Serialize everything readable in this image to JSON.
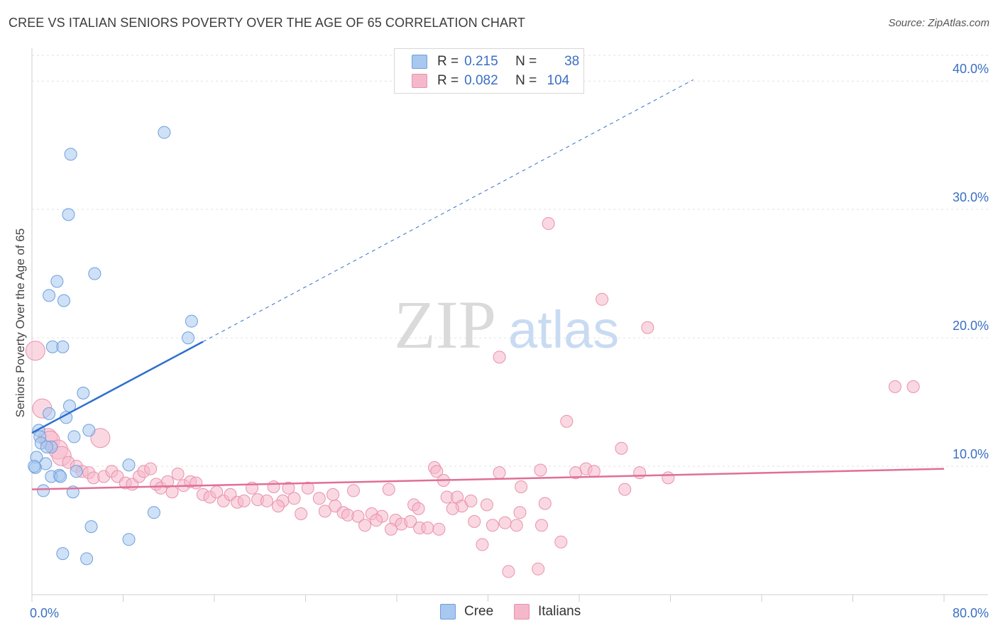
{
  "header": {
    "title": "CREE VS ITALIAN SENIORS POVERTY OVER THE AGE OF 65 CORRELATION CHART",
    "source": "Source: ZipAtlas.com"
  },
  "legend": {
    "rows": [
      {
        "r_label": "R =",
        "r_value": "0.215",
        "n_label": "N =",
        "n_value": "38"
      },
      {
        "r_label": "R =",
        "r_value": "0.082",
        "n_label": "N =",
        "n_value": "104"
      }
    ]
  },
  "colors": {
    "cree_fill": "#a8c8f0",
    "cree_stroke": "#6d9fdc",
    "cree_line": "#2f6fcc",
    "italians_fill": "#f5b8cb",
    "italians_stroke": "#e891ae",
    "italians_line": "#e06f97",
    "axis_text": "#3a6fc4",
    "grid": "#e2e2e2"
  },
  "chart_data": {
    "type": "scatter",
    "title": "CREE VS ITALIAN SENIORS POVERTY OVER THE AGE OF 65 CORRELATION CHART",
    "xlabel": "",
    "ylabel": "Seniors Poverty Over the Age of 65",
    "xlim": [
      0,
      80
    ],
    "ylim": [
      0,
      42
    ],
    "x_tick_labels": [
      "0.0%",
      "80.0%"
    ],
    "y_ticks": [
      10,
      20,
      30,
      40
    ],
    "y_tick_labels": [
      "10.0%",
      "20.0%",
      "30.0%",
      "40.0%"
    ],
    "watermark": {
      "zip": "ZIP",
      "atlas": "atlas"
    },
    "series": [
      {
        "name": "Cree",
        "points": [
          [
            11.6,
            36.0
          ],
          [
            3.4,
            34.3
          ],
          [
            3.2,
            29.6
          ],
          [
            5.5,
            25.0
          ],
          [
            2.2,
            24.4
          ],
          [
            1.5,
            23.3
          ],
          [
            2.8,
            22.9
          ],
          [
            14.0,
            21.3
          ],
          [
            13.7,
            20.0
          ],
          [
            1.8,
            19.3
          ],
          [
            2.7,
            19.3
          ],
          [
            4.5,
            15.7
          ],
          [
            3.3,
            14.7
          ],
          [
            1.5,
            14.1
          ],
          [
            3.0,
            13.8
          ],
          [
            5.0,
            12.8
          ],
          [
            0.6,
            12.8
          ],
          [
            0.7,
            12.3
          ],
          [
            3.7,
            12.3
          ],
          [
            0.8,
            11.8
          ],
          [
            1.7,
            11.5
          ],
          [
            1.3,
            11.5
          ],
          [
            0.4,
            10.7
          ],
          [
            1.2,
            10.2
          ],
          [
            8.5,
            10.1
          ],
          [
            0.3,
            9.9
          ],
          [
            3.9,
            9.6
          ],
          [
            2.4,
            9.3
          ],
          [
            1.7,
            9.2
          ],
          [
            2.5,
            9.2
          ],
          [
            1.0,
            8.1
          ],
          [
            3.6,
            8.0
          ],
          [
            10.7,
            6.4
          ],
          [
            5.2,
            5.3
          ],
          [
            8.5,
            4.3
          ],
          [
            2.7,
            3.2
          ],
          [
            4.8,
            2.8
          ],
          [
            0.2,
            10.0
          ]
        ],
        "trend": {
          "x": [
            0,
            15
          ],
          "y": [
            12.6,
            19.7
          ]
        },
        "trend_extension": {
          "x": [
            15,
            58
          ],
          "y": [
            19.7,
            40.1
          ]
        }
      },
      {
        "name": "Italians",
        "points": [
          [
            45.3,
            28.9
          ],
          [
            50.0,
            23.0
          ],
          [
            54.0,
            20.8
          ],
          [
            41.0,
            18.5
          ],
          [
            75.7,
            16.2
          ],
          [
            77.3,
            16.2
          ],
          [
            46.9,
            13.5
          ],
          [
            51.7,
            11.4
          ],
          [
            35.3,
            9.9
          ],
          [
            41.0,
            9.5
          ],
          [
            44.6,
            9.7
          ],
          [
            47.7,
            9.5
          ],
          [
            48.6,
            9.8
          ],
          [
            49.3,
            9.6
          ],
          [
            53.3,
            9.5
          ],
          [
            55.8,
            9.1
          ],
          [
            35.5,
            9.6
          ],
          [
            36.1,
            8.9
          ],
          [
            42.9,
            8.4
          ],
          [
            52.0,
            8.2
          ],
          [
            24.2,
            8.3
          ],
          [
            26.4,
            7.8
          ],
          [
            28.2,
            8.1
          ],
          [
            31.3,
            8.2
          ],
          [
            33.5,
            7.0
          ],
          [
            36.4,
            7.6
          ],
          [
            37.3,
            7.6
          ],
          [
            37.7,
            6.9
          ],
          [
            42.8,
            6.4
          ],
          [
            45.0,
            7.1
          ],
          [
            33.9,
            6.7
          ],
          [
            22.0,
            7.3
          ],
          [
            23.0,
            7.5
          ],
          [
            25.2,
            7.5
          ],
          [
            29.8,
            6.3
          ],
          [
            30.7,
            6.1
          ],
          [
            31.9,
            5.8
          ],
          [
            32.4,
            5.5
          ],
          [
            33.2,
            5.7
          ],
          [
            34.0,
            5.2
          ],
          [
            38.8,
            5.7
          ],
          [
            40.4,
            5.4
          ],
          [
            41.5,
            5.6
          ],
          [
            42.5,
            5.4
          ],
          [
            44.7,
            5.4
          ],
          [
            39.5,
            3.9
          ],
          [
            46.4,
            4.1
          ],
          [
            41.8,
            1.8
          ],
          [
            44.4,
            2.0
          ],
          [
            0.3,
            19.0
          ],
          [
            0.9,
            14.5
          ],
          [
            1.4,
            12.2
          ],
          [
            1.6,
            12.0
          ],
          [
            6.0,
            12.2
          ],
          [
            2.3,
            11.3
          ],
          [
            2.6,
            10.8
          ],
          [
            3.2,
            10.3
          ],
          [
            3.9,
            10.0
          ],
          [
            4.4,
            9.6
          ],
          [
            5.0,
            9.5
          ],
          [
            5.4,
            9.1
          ],
          [
            6.3,
            9.2
          ],
          [
            7.0,
            9.6
          ],
          [
            7.5,
            9.2
          ],
          [
            8.2,
            8.7
          ],
          [
            8.8,
            8.6
          ],
          [
            9.4,
            9.2
          ],
          [
            9.8,
            9.6
          ],
          [
            10.4,
            9.8
          ],
          [
            10.9,
            8.6
          ],
          [
            11.3,
            8.3
          ],
          [
            11.9,
            8.8
          ],
          [
            12.3,
            8.0
          ],
          [
            12.8,
            9.4
          ],
          [
            13.3,
            8.5
          ],
          [
            13.9,
            8.8
          ],
          [
            14.4,
            8.7
          ],
          [
            15.0,
            7.8
          ],
          [
            15.6,
            7.6
          ],
          [
            16.2,
            8.0
          ],
          [
            16.8,
            7.3
          ],
          [
            17.4,
            7.8
          ],
          [
            18.0,
            7.2
          ],
          [
            18.6,
            7.3
          ],
          [
            19.3,
            8.3
          ],
          [
            19.8,
            7.4
          ],
          [
            20.6,
            7.3
          ],
          [
            21.2,
            8.4
          ],
          [
            21.6,
            6.9
          ],
          [
            22.5,
            8.3
          ],
          [
            23.6,
            6.3
          ],
          [
            25.7,
            6.5
          ],
          [
            26.6,
            6.9
          ],
          [
            27.3,
            6.4
          ],
          [
            27.7,
            6.2
          ],
          [
            28.6,
            6.1
          ],
          [
            29.2,
            5.4
          ],
          [
            30.2,
            5.8
          ],
          [
            31.5,
            5.1
          ],
          [
            34.7,
            5.2
          ],
          [
            35.7,
            5.1
          ],
          [
            36.9,
            6.7
          ],
          [
            38.5,
            7.3
          ],
          [
            39.9,
            7.0
          ]
        ],
        "trend": {
          "x": [
            0,
            80
          ],
          "y": [
            8.2,
            9.8
          ]
        }
      }
    ]
  }
}
